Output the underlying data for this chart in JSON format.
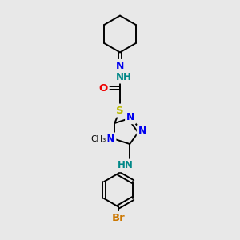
{
  "bg_color": "#e8e8e8",
  "atom_colors": {
    "C": "#000000",
    "N": "#0000ee",
    "O": "#ee0000",
    "S": "#bbbb00",
    "Br": "#cc7700",
    "H": "#000000",
    "NH": "#008888"
  },
  "bond_color": "#000000",
  "bond_width": 1.4,
  "fig_size": [
    3.0,
    3.0
  ],
  "dpi": 100,
  "xlim": [
    0,
    300
  ],
  "ylim": [
    0,
    300
  ]
}
